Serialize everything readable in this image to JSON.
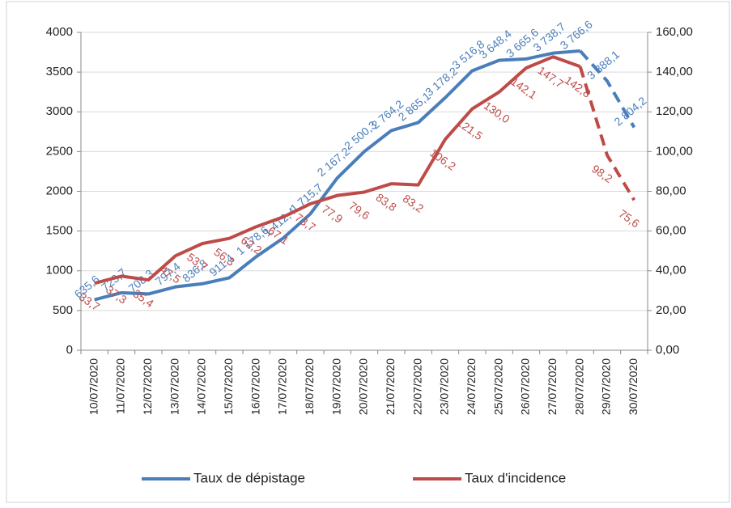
{
  "chart_data": {
    "type": "line",
    "categories": [
      "10/07/2020",
      "11/07/2020",
      "12/07/2020",
      "13/07/2020",
      "14/07/2020",
      "15/07/2020",
      "16/07/2020",
      "17/07/2020",
      "18/07/2020",
      "19/07/2020",
      "20/07/2020",
      "21/07/2020",
      "22/07/2020",
      "23/07/2020",
      "24/07/2020",
      "25/07/2020",
      "26/07/2020",
      "27/07/2020",
      "28/07/2020",
      "29/07/2020",
      "30/07/2020"
    ],
    "series": [
      {
        "name": "Taux de dépistage",
        "color": "#4a7ebb",
        "axis": "y",
        "dashed_from": 18,
        "values": [
          635.6,
          723.7,
          708.3,
          797.4,
          836.8,
          911.4,
          1178.6,
          1412.4,
          1715.7,
          2167.2,
          2500.3,
          2764.2,
          2865.1,
          3178.2,
          3516.8,
          3648.4,
          3665.6,
          3738.7,
          3766.6,
          3388.1,
          2804.2
        ],
        "value_labels": [
          "635,6",
          "723,7",
          "708,3",
          "797,4",
          "836,8",
          "911,4",
          "1 178,6",
          "1 412,4",
          "1 715,7",
          "2 167,2",
          "2 500,3",
          "2 764,2",
          "2 865,1",
          "3 178,2",
          "3 516,8",
          "3 648,4",
          "3 665,6",
          "3 738,7",
          "3 766,6",
          "3 388,1",
          "2 804,2"
        ]
      },
      {
        "name": "Taux d'incidence",
        "color": "#be4b48",
        "axis": "y2",
        "dashed_from": 18,
        "values": [
          33.7,
          37.3,
          35.4,
          47.5,
          53.7,
          56.3,
          62.2,
          67.1,
          73.7,
          77.9,
          79.6,
          83.8,
          83.2,
          106.2,
          121.5,
          130.0,
          142.1,
          147.7,
          142.8,
          98.2,
          75.6
        ],
        "value_labels": [
          "33,7",
          "37,3",
          "35,4",
          "47,5",
          "53,7",
          "56,3",
          "62,2",
          "67,1",
          "73,7",
          "77,9",
          "79,6",
          "83,8",
          "83,2",
          "106,2",
          "121,5",
          "130,0",
          "142,1",
          "147,7",
          "142,8",
          "98,2",
          "75,6"
        ]
      }
    ],
    "ylim": [
      0,
      4000
    ],
    "yticks": [
      0,
      500,
      1000,
      1500,
      2000,
      2500,
      3000,
      3500,
      4000
    ],
    "y2lim": [
      0,
      160
    ],
    "y2ticks": [
      {
        "value": 0,
        "label": "0,00"
      },
      {
        "value": 20,
        "label": "20,00"
      },
      {
        "value": 40,
        "label": "40,00"
      },
      {
        "value": 60,
        "label": "60,00"
      },
      {
        "value": 80,
        "label": "80,00"
      },
      {
        "value": 100,
        "label": "100,00"
      },
      {
        "value": 120,
        "label": "120,00"
      },
      {
        "value": 140,
        "label": "140,00"
      },
      {
        "value": 160,
        "label": "160,00"
      }
    ],
    "grid": true,
    "legend": "bottom"
  }
}
